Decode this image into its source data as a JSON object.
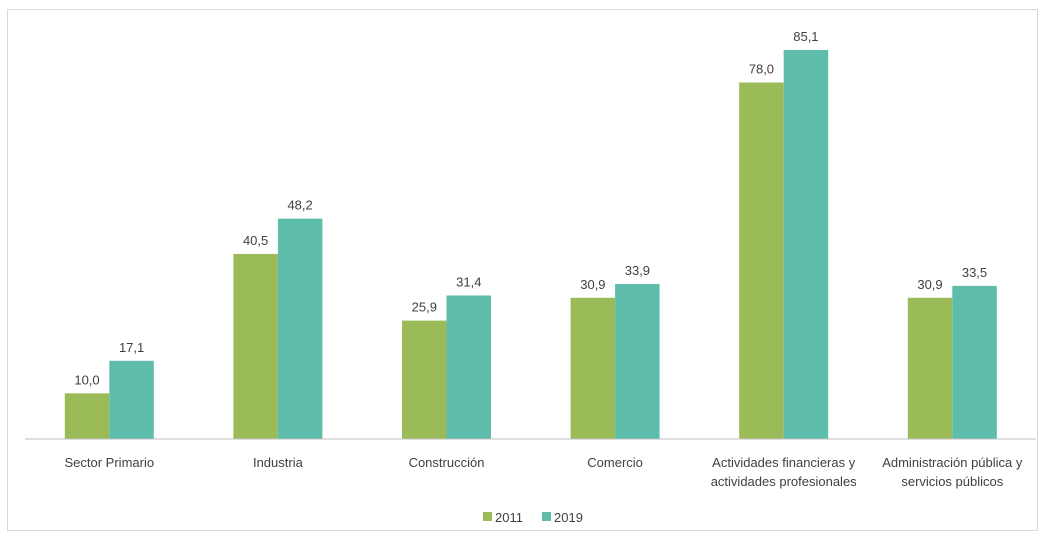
{
  "chart_data": {
    "type": "bar",
    "title": "",
    "xlabel": "",
    "ylabel": "",
    "categories": [
      [
        "Sector Primario"
      ],
      [
        "Industria"
      ],
      [
        "Construcción"
      ],
      [
        "Comercio"
      ],
      [
        "Actividades financieras y",
        "actividades profesionales"
      ],
      [
        "Administración pública y",
        "servicios públicos"
      ]
    ],
    "series": [
      {
        "name": "2011",
        "color": "#9bbb59",
        "values": [
          10.0,
          40.5,
          25.9,
          30.9,
          78.0,
          30.9
        ],
        "labels": [
          "10,0",
          "40,5",
          "25,9",
          "30,9",
          "78,0",
          "30,9"
        ]
      },
      {
        "name": "2019",
        "color": "#5dbcaa",
        "values": [
          17.1,
          48.2,
          31.4,
          33.9,
          85.1,
          33.5
        ],
        "labels": [
          "17,1",
          "48,2",
          "31,4",
          "33,9",
          "85,1",
          "33,5"
        ]
      }
    ],
    "ylim": [
      0,
      85.1
    ],
    "grid": false,
    "legend": "bottom-center",
    "axis_color": "#bfbfbf"
  }
}
